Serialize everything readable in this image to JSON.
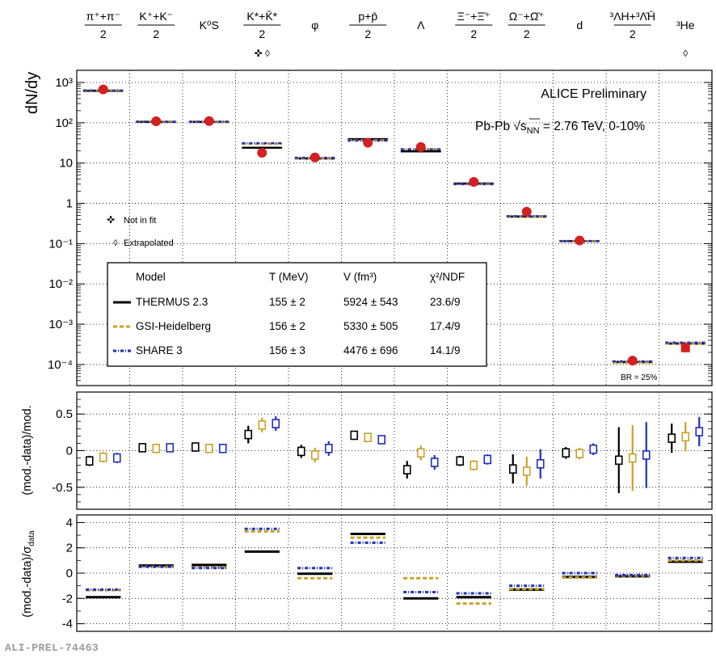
{
  "colors": {
    "thermus": "#000000",
    "gsi": "#C9A227",
    "share": "#1F2FBF",
    "data_fill": "#D42020",
    "data_outline": "#D42020"
  },
  "species": [
    {
      "key": "pi",
      "num": "π⁺+π⁻",
      "den": "2"
    },
    {
      "key": "K",
      "num": "K⁺+K⁻",
      "den": "2"
    },
    {
      "key": "K0s",
      "label": "K⁰S"
    },
    {
      "key": "Kstar",
      "num": "K*+K̄*",
      "den": "2"
    },
    {
      "key": "phi",
      "label": "φ"
    },
    {
      "key": "p",
      "num": "p+p̄",
      "den": "2"
    },
    {
      "key": "Lambda",
      "label": "Λ"
    },
    {
      "key": "Xi",
      "num": "Ξ⁻+Ξ̄⁺",
      "den": "2"
    },
    {
      "key": "Omega",
      "num": "Ω⁻+Ω̄⁺",
      "den": "2"
    },
    {
      "key": "d",
      "label": "d"
    },
    {
      "key": "hyper",
      "num": "³ΛH+³Λ̄H̄",
      "den": "2"
    },
    {
      "key": "He3",
      "label": "³He"
    }
  ],
  "species_markers": {
    "Kstar": "✜ ◊",
    "He3": "◊"
  },
  "texts": {
    "ylabel_top": "dN/dy",
    "ylabel_mid": "(mod.-data)/mod.",
    "ylabel_bot": "(mod.-data)/σ",
    "ylabel_bot_sub": "data",
    "collab": "ALICE Preliminary",
    "system": "Pb-Pb  √s",
    "system_sub": "NN",
    "system_tail": " = 2.76 TeV, 0-10%",
    "not_in_fit": "Not in fit",
    "extrapolated": "Extrapolated",
    "br": "BR = 25%",
    "prel_tag": "ALI-PREL-74463"
  },
  "legend": {
    "headers": [
      "Model",
      "T (MeV)",
      "V (fm³)",
      "χ²/NDF"
    ],
    "rows": [
      {
        "style": "thermus",
        "model": "THERMUS 2.3",
        "T": "155 ± 2",
        "V": "5924 ± 543",
        "chi2": "23.6/9"
      },
      {
        "style": "gsi",
        "model": "GSI-Heidelberg",
        "T": "156 ± 2",
        "V": "5330 ± 505",
        "chi2": "17.4/9"
      },
      {
        "style": "share",
        "model": "SHARE 3",
        "T": "156 ± 3",
        "V": "4476 ± 696",
        "chi2": "14.1/9"
      }
    ]
  },
  "chart_data": [
    {
      "type": "scatter",
      "panel": "yields",
      "ylabel": "dN/dy",
      "yscale": "log",
      "ylim": [
        3e-05,
        2000
      ],
      "y_tick_labels": [
        "10³",
        "10²",
        "10",
        "1",
        "10⁻¹",
        "10⁻²",
        "10⁻³",
        "10⁻⁴"
      ],
      "categories": [
        "π⁺+π⁻/2",
        "K⁺+K⁻/2",
        "K⁰S",
        "K*+K̄*/2",
        "φ",
        "p+p̄/2",
        "Λ",
        "Ξ⁻+Ξ̄⁺/2",
        "Ω⁻+Ω̄⁺/2",
        "d",
        "³ΛH+³Λ̄H̄/2",
        "³He"
      ],
      "data": [
        670,
        109,
        110,
        18,
        13.8,
        32,
        25,
        3.4,
        0.62,
        0.12,
        0.000125,
        0.00026
      ],
      "series": [
        {
          "name": "THERMUS 2.3",
          "values": [
            620,
            105,
            105,
            24,
            13,
            39,
            19.5,
            3.1,
            0.47,
            0.115,
            0.000115,
            0.00033
          ]
        },
        {
          "name": "GSI-Heidelberg",
          "values": [
            640,
            107,
            106,
            30,
            13,
            37,
            22,
            3.0,
            0.46,
            0.115,
            0.000112,
            0.00033
          ]
        },
        {
          "name": "SHARE 3",
          "values": [
            630,
            106,
            106,
            31,
            13.5,
            36,
            22,
            3.0,
            0.48,
            0.116,
            0.00012,
            0.00035
          ]
        }
      ]
    },
    {
      "type": "scatter",
      "panel": "relative deviation",
      "ylabel": "(mod.-data)/mod.",
      "ylim": [
        -0.8,
        0.8
      ],
      "y_tick_labels": [
        "0.5",
        "0",
        "-0.5"
      ],
      "series": [
        {
          "name": "THERMUS 2.3",
          "values": [
            -0.14,
            0.04,
            0.05,
            0.22,
            -0.01,
            0.21,
            -0.26,
            -0.14,
            -0.25,
            -0.03,
            -0.13,
            0.17
          ],
          "errors": [
            0.07,
            0.05,
            0.05,
            0.12,
            0.09,
            0.04,
            0.12,
            0.07,
            0.2,
            0.08,
            0.45,
            0.2
          ]
        },
        {
          "name": "GSI-Heidelberg",
          "values": [
            -0.09,
            0.03,
            0.03,
            0.35,
            -0.06,
            0.18,
            -0.03,
            -0.2,
            -0.28,
            -0.04,
            -0.1,
            0.19
          ],
          "errors": [
            0.07,
            0.05,
            0.06,
            0.1,
            0.1,
            0.04,
            0.1,
            0.07,
            0.2,
            0.08,
            0.45,
            0.2
          ]
        },
        {
          "name": "SHARE 3",
          "values": [
            -0.1,
            0.04,
            0.03,
            0.37,
            0.03,
            0.15,
            -0.16,
            -0.12,
            -0.18,
            0.02,
            -0.06,
            0.26
          ],
          "errors": [
            0.07,
            0.05,
            0.06,
            0.1,
            0.1,
            0.04,
            0.1,
            0.07,
            0.2,
            0.08,
            0.45,
            0.2
          ]
        }
      ]
    },
    {
      "type": "scatter",
      "panel": "deviation in sigma",
      "ylabel": "(mod.-data)/σdata",
      "ylim": [
        -4.6,
        4.6
      ],
      "y_tick_labels": [
        "4",
        "2",
        "0",
        "-2",
        "-4"
      ],
      "series": [
        {
          "name": "THERMUS 2.3",
          "values": [
            -1.9,
            0.6,
            0.65,
            1.7,
            -0.05,
            3.1,
            -2.0,
            -1.9,
            -1.3,
            -0.3,
            -0.25,
            0.9
          ]
        },
        {
          "name": "GSI-Heidelberg",
          "values": [
            -1.35,
            0.5,
            0.45,
            3.3,
            -0.4,
            2.8,
            -0.4,
            -2.4,
            -1.25,
            -0.35,
            -0.2,
            1.0
          ]
        },
        {
          "name": "SHARE 3",
          "values": [
            -1.3,
            0.5,
            0.4,
            3.5,
            0.4,
            2.4,
            -1.5,
            -1.6,
            -1.0,
            0.0,
            -0.15,
            1.2
          ]
        }
      ]
    }
  ]
}
